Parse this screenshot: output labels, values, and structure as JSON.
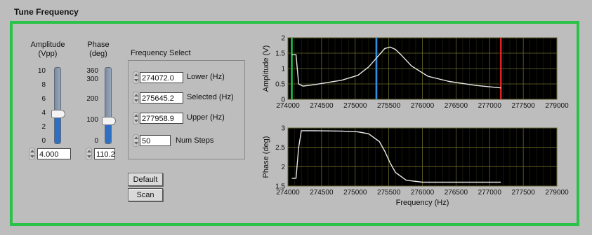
{
  "window": {
    "title": "Tune Frequency"
  },
  "amplitude": {
    "label": "Amplitude\n(Vpp)",
    "ticks": [
      "10",
      "8",
      "6",
      "4",
      "2",
      "0"
    ],
    "value": "4.000",
    "level": 0.4
  },
  "phase": {
    "label": "Phase\n(deg)",
    "ticks": [
      "360",
      "300",
      "200",
      "100",
      "0"
    ],
    "value": "110.20",
    "level": 0.306
  },
  "freq_select": {
    "title": "Frequency Select",
    "lower": {
      "value": "274072.0",
      "label": "Lower (Hz)"
    },
    "selected": {
      "value": "275645.2",
      "label": "Selected (Hz)"
    },
    "upper": {
      "value": "277958.9",
      "label": "Upper (Hz)"
    },
    "steps": {
      "value": "50",
      "label": "Num Steps"
    }
  },
  "buttons": {
    "default_label": "Default",
    "scan_label": "Scan"
  },
  "colors": {
    "frame": "#2bc24a",
    "lower_cursor": "#22c34a",
    "selected_cursor": "#2f8fe0",
    "upper_cursor": "#e02020",
    "slider_fill": "#2d6fc3"
  },
  "chart_data": [
    {
      "type": "line",
      "ylabel": "Amplitude (V)",
      "xlabel": "",
      "xlim": [
        274000,
        279000
      ],
      "ylim": [
        0,
        2
      ],
      "x_ticks": [
        "274000",
        "274500",
        "275000",
        "275500",
        "276000",
        "276500",
        "277000",
        "277500",
        "279000"
      ],
      "y_ticks": [
        "0",
        "0.5",
        "1",
        "1.5",
        "2"
      ],
      "grid": true,
      "cursors": [
        274072.0,
        275645.2,
        277958.9
      ],
      "x": [
        274072,
        274110,
        274150,
        274200,
        274280,
        274500,
        275000,
        275300,
        275500,
        275650,
        275800,
        275900,
        276000,
        276100,
        276300,
        276600,
        277000,
        277500,
        277960
      ],
      "y": [
        1.45,
        1.45,
        1.45,
        0.5,
        0.43,
        0.48,
        0.62,
        0.78,
        1.05,
        1.35,
        1.65,
        1.7,
        1.62,
        1.45,
        1.08,
        0.75,
        0.58,
        0.45,
        0.37
      ]
    },
    {
      "type": "line",
      "ylabel": "Phase (deg)",
      "xlabel": "Frequency (Hz)",
      "xlim": [
        274000,
        279000
      ],
      "ylim": [
        1.5,
        3
      ],
      "x_ticks": [
        "274000",
        "274500",
        "275000",
        "275500",
        "276000",
        "276500",
        "277000",
        "277500",
        "279000"
      ],
      "y_ticks": [
        "1.5",
        "2",
        "2.5",
        "3"
      ],
      "grid": true,
      "x": [
        274072,
        274150,
        274200,
        274250,
        274500,
        275000,
        275300,
        275500,
        275700,
        275800,
        275900,
        276000,
        276200,
        276500,
        277000,
        277500,
        277960
      ],
      "y": [
        1.7,
        1.7,
        2.5,
        2.93,
        2.93,
        2.92,
        2.9,
        2.85,
        2.65,
        2.4,
        2.1,
        1.85,
        1.65,
        1.6,
        1.6,
        1.6,
        1.6
      ]
    }
  ]
}
